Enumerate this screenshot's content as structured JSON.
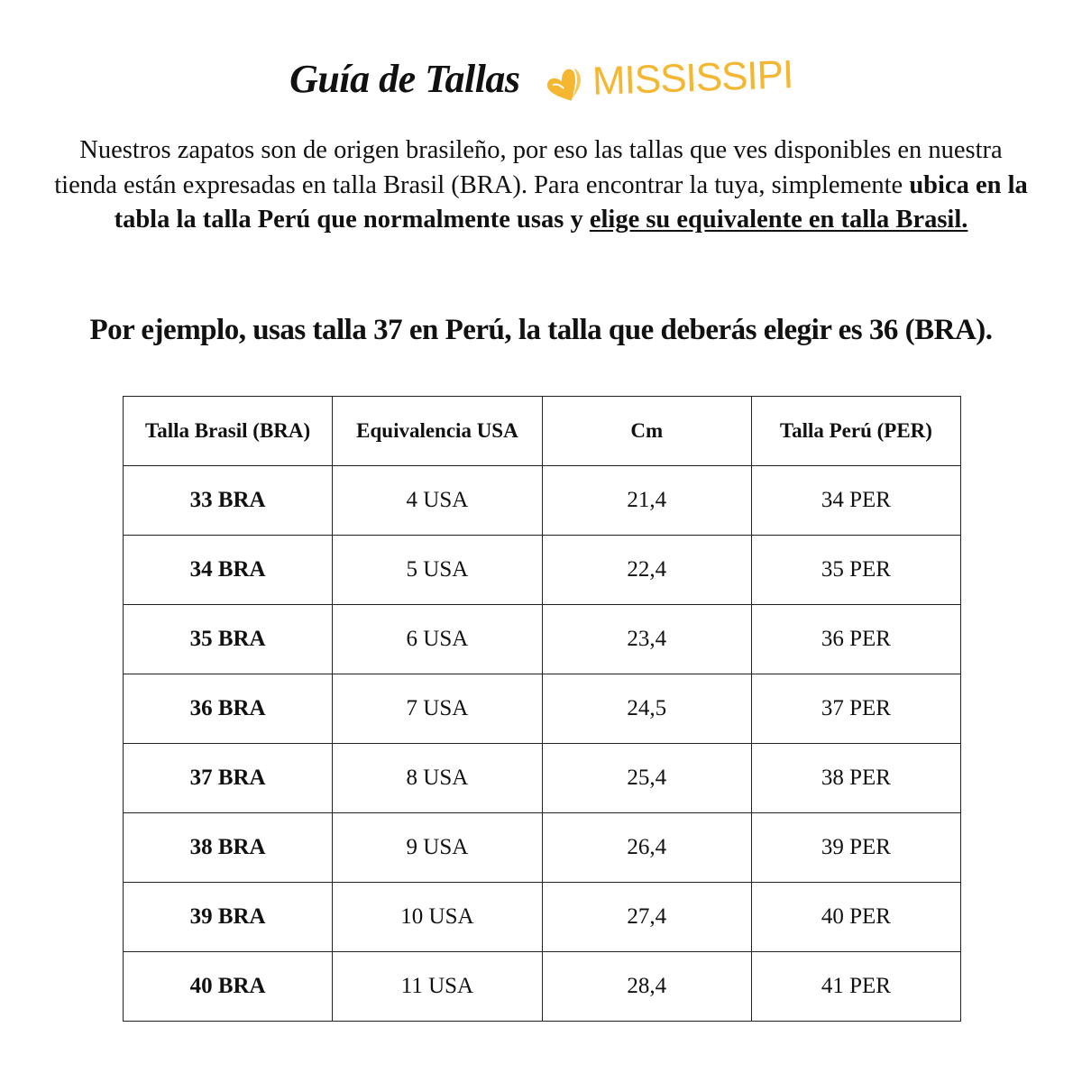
{
  "header": {
    "title": "Guía de Tallas",
    "logo_text": "MISSISSIPI",
    "logo_icon": "heart-icon",
    "brand_color": "#f5b731"
  },
  "intro": {
    "text_plain": "Nuestros zapatos son de origen brasileño, por eso las tallas que ves disponibles en nuestra tienda están expresadas en talla Brasil (BRA). Para encontrar la tuya, simplemente ",
    "text_bold": "ubica en la tabla la talla Perú que normalmente usas y ",
    "text_bold_underlined": "elige su equivalente en talla Brasil."
  },
  "example": "Por ejemplo, usas talla 37 en Perú, la talla que deberás elegir es 36 (BRA).",
  "table": {
    "headers": [
      "Talla Brasil (BRA)",
      "Equivalencia USA",
      "Cm",
      "Talla Perú (PER)"
    ],
    "rows": [
      [
        "33 BRA",
        "4 USA",
        "21,4",
        "34 PER"
      ],
      [
        "34 BRA",
        "5 USA",
        "22,4",
        "35 PER"
      ],
      [
        "35 BRA",
        "6 USA",
        "23,4",
        "36 PER"
      ],
      [
        "36 BRA",
        "7 USA",
        "24,5",
        "37 PER"
      ],
      [
        "37 BRA",
        "8 USA",
        "25,4",
        "38 PER"
      ],
      [
        "38 BRA",
        "9 USA",
        "26,4",
        "39 PER"
      ],
      [
        "39 BRA",
        "10 USA",
        "27,4",
        "40 PER"
      ],
      [
        "40 BRA",
        "11 USA",
        "28,4",
        "41 PER"
      ]
    ]
  }
}
